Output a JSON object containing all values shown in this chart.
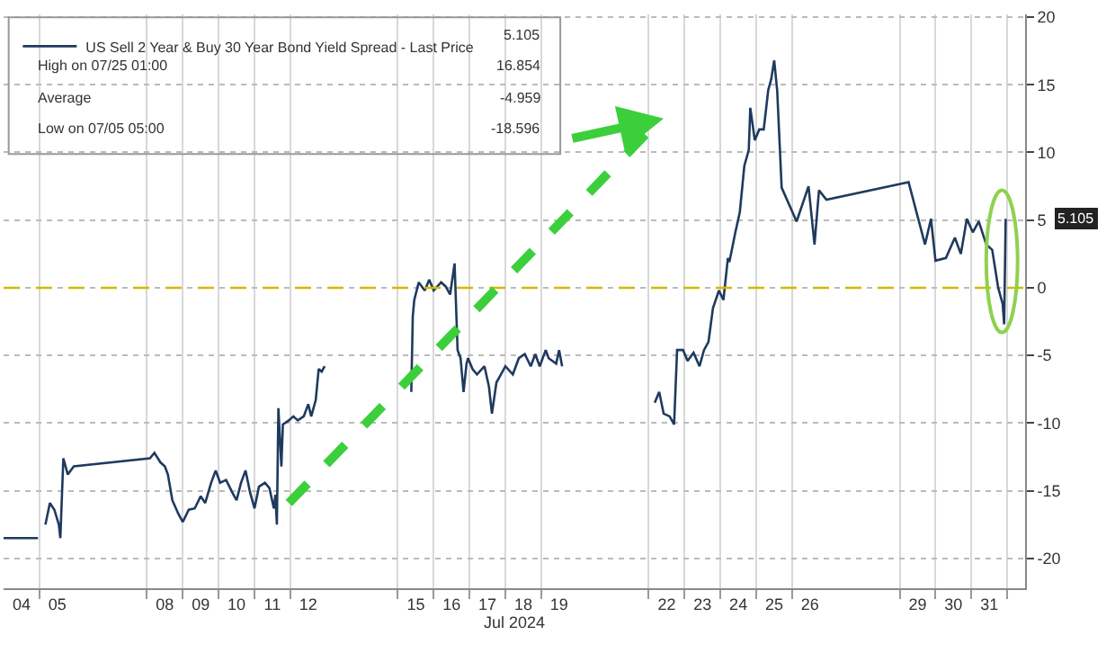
{
  "chart_data": {
    "type": "line",
    "xlabel": "Jul 2024",
    "series": [
      {
        "name": "US Sell 2 Year & Buy 30 Year Bond Yield Spread - Last Price",
        "color": "#1f3a5f",
        "x": [
          "2024-07-04T00:00",
          "2024-07-04T23:00",
          "2024-07-05T00:00",
          "2024-07-05T04:00",
          "2024-07-05T07:00",
          "2024-07-05T10:00",
          "2024-07-05T13:00",
          "2024-07-05T14:00",
          "2024-07-05T16:00",
          "2024-07-05T19:00",
          "2024-07-05T23:00",
          "2024-07-08T02:00",
          "2024-07-08T05:00",
          "2024-07-08T09:00",
          "2024-07-08T12:00",
          "2024-07-08T14:00",
          "2024-07-08T17:00",
          "2024-07-08T21:00",
          "2024-07-09T00:00",
          "2024-07-09T04:00",
          "2024-07-09T08:00",
          "2024-07-09T12:00",
          "2024-07-09T15:00",
          "2024-07-09T19:00",
          "2024-07-09T22:00",
          "2024-07-10T01:00",
          "2024-07-10T05:00",
          "2024-07-10T09:00",
          "2024-07-10T12:00",
          "2024-07-10T15:00",
          "2024-07-10T18:00",
          "2024-07-10T21:00",
          "2024-07-11T00:00",
          "2024-07-11T03:00",
          "2024-07-11T07:00",
          "2024-07-11T10:00",
          "2024-07-11T13:00",
          "2024-07-11T14:00",
          "2024-07-11T15:00",
          "2024-07-11T16:00",
          "2024-07-11T18:00",
          "2024-07-11T19:00",
          "2024-07-11T23:00",
          "2024-07-12T02:00",
          "2024-07-12T05:00",
          "2024-07-12T09:00",
          "2024-07-12T12:00",
          "2024-07-12T14:00",
          "2024-07-12T17:00",
          "2024-07-12T19:00",
          "2024-07-12T21:00",
          "2024-07-12T23:00",
          "2024-07-15T00:00",
          "2024-07-15T09:00",
          "2024-07-15T10:00",
          "2024-07-15T11:00",
          "2024-07-15T14:00",
          "2024-07-15T18:00",
          "2024-07-15T21:00",
          "2024-07-16T00:00",
          "2024-07-16T05:00",
          "2024-07-16T08:00",
          "2024-07-16T11:00",
          "2024-07-16T14:00",
          "2024-07-16T16:00",
          "2024-07-16T18:00",
          "2024-07-16T20:00",
          "2024-07-16T22:00",
          "2024-07-16T23:00",
          "2024-07-17T02:00",
          "2024-07-17T05:00",
          "2024-07-17T10:00",
          "2024-07-17T13:00",
          "2024-07-17T15:00",
          "2024-07-17T18:00",
          "2024-07-17T21:00",
          "2024-07-18T00:00",
          "2024-07-18T05:00",
          "2024-07-18T09:00",
          "2024-07-18T13:00",
          "2024-07-18T17:00",
          "2024-07-18T20:00",
          "2024-07-18T23:00",
          "2024-07-19T03:00",
          "2024-07-19T05:00",
          "2024-07-19T10:00",
          "2024-07-19T12:00",
          "2024-07-19T14:00",
          "2024-07-22T00:00",
          "2024-07-22T04:00",
          "2024-07-22T07:00",
          "2024-07-22T10:00",
          "2024-07-22T14:00",
          "2024-07-22T17:00",
          "2024-07-22T18:00",
          "2024-07-22T19:00",
          "2024-07-22T23:00",
          "2024-07-23T02:00",
          "2024-07-23T06:00",
          "2024-07-23T10:00",
          "2024-07-23T13:00",
          "2024-07-23T16:00",
          "2024-07-23T19:00",
          "2024-07-23T23:00",
          "2024-07-24T02:00",
          "2024-07-24T05:00",
          "2024-07-24T06:00",
          "2024-07-24T10:00",
          "2024-07-24T13:00",
          "2024-07-24T16:00",
          "2024-07-24T19:00",
          "2024-07-24T20:00",
          "2024-07-24T23:00",
          "2024-07-25T02:00",
          "2024-07-25T05:00",
          "2024-07-25T08:00",
          "2024-07-25T10:00",
          "2024-07-25T12:00",
          "2024-07-25T14:00",
          "2024-07-25T17:00",
          "2024-07-26T03:00",
          "2024-07-26T11:00",
          "2024-07-26T15:00",
          "2024-07-26T18:00",
          "2024-07-26T23:00",
          "2024-07-29T06:00",
          "2024-07-29T17:00",
          "2024-07-29T21:00",
          "2024-07-30T00:00",
          "2024-07-30T07:00",
          "2024-07-30T13:00",
          "2024-07-30T17:00",
          "2024-07-30T21:00",
          "2024-07-31T01:00",
          "2024-07-31T05:00",
          "2024-07-31T10:00",
          "2024-07-31T14:00",
          "2024-07-31T18:00",
          "2024-07-31T21:00",
          "2024-07-31T22:00",
          "2024-07-31T23:00"
        ],
        "values": [
          -18.5,
          -18.5,
          null,
          -17.5,
          -15.9,
          -16.4,
          -17.5,
          -18.5,
          -12.6,
          -13.8,
          -13.2,
          -12.6,
          -12.2,
          -12.9,
          -13.2,
          -13.8,
          -15.7,
          -16.7,
          -17.3,
          -16.4,
          -16.3,
          -15.4,
          -15.9,
          -14.4,
          -13.5,
          -14.4,
          -14.2,
          -15.1,
          -15.7,
          -14.4,
          -13.5,
          -15.1,
          -16.3,
          -14.7,
          -14.4,
          -14.8,
          -16.3,
          -15.3,
          -17.5,
          -8.9,
          -13.2,
          -10.1,
          -9.8,
          -9.5,
          -9.8,
          -9.5,
          -8.6,
          -9.5,
          -8.3,
          -6.0,
          -6.2,
          -5.8,
          null,
          -7.7,
          -2.1,
          -0.9,
          0.4,
          -0.2,
          0.6,
          -0.2,
          0.4,
          0.1,
          -0.5,
          1.8,
          -4.6,
          -5.2,
          -7.7,
          -5.6,
          -5.2,
          -6.0,
          -6.4,
          -5.8,
          -7.3,
          -9.3,
          -7.0,
          -6.4,
          -5.8,
          -6.4,
          -5.2,
          -4.9,
          -5.8,
          -4.9,
          -5.8,
          -4.6,
          -5.2,
          -5.6,
          -4.6,
          -5.8,
          null,
          -8.5,
          -7.7,
          -9.3,
          -9.5,
          -10.1,
          -7.3,
          -4.6,
          -4.6,
          -5.4,
          -4.8,
          -5.8,
          -4.6,
          -4.0,
          -1.5,
          -0.2,
          -0.9,
          2.2,
          1.9,
          4.1,
          5.6,
          9.0,
          10.2,
          13.3,
          10.9,
          11.7,
          11.7,
          14.6,
          15.4,
          16.8,
          14.6,
          7.4,
          4.9,
          7.5,
          3.2,
          7.2,
          6.5,
          7.8,
          3.2,
          5.1,
          2.0,
          2.2,
          3.7,
          2.5,
          5.1,
          4.1,
          4.9,
          3.2,
          2.8,
          0.0,
          -1.2,
          -2.7,
          5.1
        ]
      }
    ],
    "xlim": [
      "2024-07-04T00:00",
      "2024-08-01T12:00"
    ],
    "xticks": [
      {
        "value": "2024-07-04T12:00",
        "label": "04"
      },
      {
        "value": "2024-07-05T12:00",
        "label": "05"
      },
      {
        "value": "2024-07-08T12:00",
        "label": "08"
      },
      {
        "value": "2024-07-09T12:00",
        "label": "09"
      },
      {
        "value": "2024-07-10T12:00",
        "label": "10"
      },
      {
        "value": "2024-07-11T12:00",
        "label": "11"
      },
      {
        "value": "2024-07-12T12:00",
        "label": "12"
      },
      {
        "value": "2024-07-15T12:00",
        "label": "15"
      },
      {
        "value": "2024-07-16T12:00",
        "label": "16"
      },
      {
        "value": "2024-07-17T12:00",
        "label": "17"
      },
      {
        "value": "2024-07-18T12:00",
        "label": "18"
      },
      {
        "value": "2024-07-19T12:00",
        "label": "19"
      },
      {
        "value": "2024-07-22T12:00",
        "label": "22"
      },
      {
        "value": "2024-07-23T12:00",
        "label": "23"
      },
      {
        "value": "2024-07-24T12:00",
        "label": "24"
      },
      {
        "value": "2024-07-25T12:00",
        "label": "25"
      },
      {
        "value": "2024-07-26T12:00",
        "label": "26"
      },
      {
        "value": "2024-07-29T12:00",
        "label": "29"
      },
      {
        "value": "2024-07-30T12:00",
        "label": "30"
      },
      {
        "value": "2024-07-31T12:00",
        "label": "31"
      },
      {
        "value": "2024-07-05",
        "label": null
      },
      {
        "value": "2024-07-08",
        "label": null
      },
      {
        "value": "2024-07-09",
        "label": null
      },
      {
        "value": "2024-07-10",
        "label": null
      },
      {
        "value": "2024-07-11",
        "label": null
      },
      {
        "value": "2024-07-12",
        "label": null
      },
      {
        "value": "2024-07-15",
        "label": null
      },
      {
        "value": "2024-07-16",
        "label": null
      },
      {
        "value": "2024-07-17",
        "label": null
      },
      {
        "value": "2024-07-18",
        "label": null
      },
      {
        "value": "2024-07-19",
        "label": null
      },
      {
        "value": "2024-07-22",
        "label": null
      },
      {
        "value": "2024-07-23",
        "label": null
      },
      {
        "value": "2024-07-24",
        "label": null
      },
      {
        "value": "2024-07-25",
        "label": null
      },
      {
        "value": "2024-07-26",
        "label": null
      },
      {
        "value": "2024-07-29",
        "label": null
      },
      {
        "value": "2024-07-30",
        "label": null
      },
      {
        "value": "2024-07-31",
        "label": null
      },
      {
        "value": "2024-08-01",
        "label": null
      }
    ],
    "ylim": [
      -22.2,
      20.2
    ],
    "yticks": [
      -20,
      -15,
      -10,
      -5,
      0,
      5,
      10,
      15,
      20
    ],
    "grid": true,
    "legend": "top left",
    "marker": "none",
    "line_style": "solid",
    "ref_lines": [
      {
        "axis": "y",
        "value": 0,
        "color": "#d4b800",
        "line_style": "dashed"
      }
    ],
    "annotations": [
      "High on 07/25 01:00",
      "Average",
      "Low on 07/05 05:00",
      "5.105",
      "16.854",
      "-4.959",
      "-18.596",
      "5.105"
    ]
  }
}
